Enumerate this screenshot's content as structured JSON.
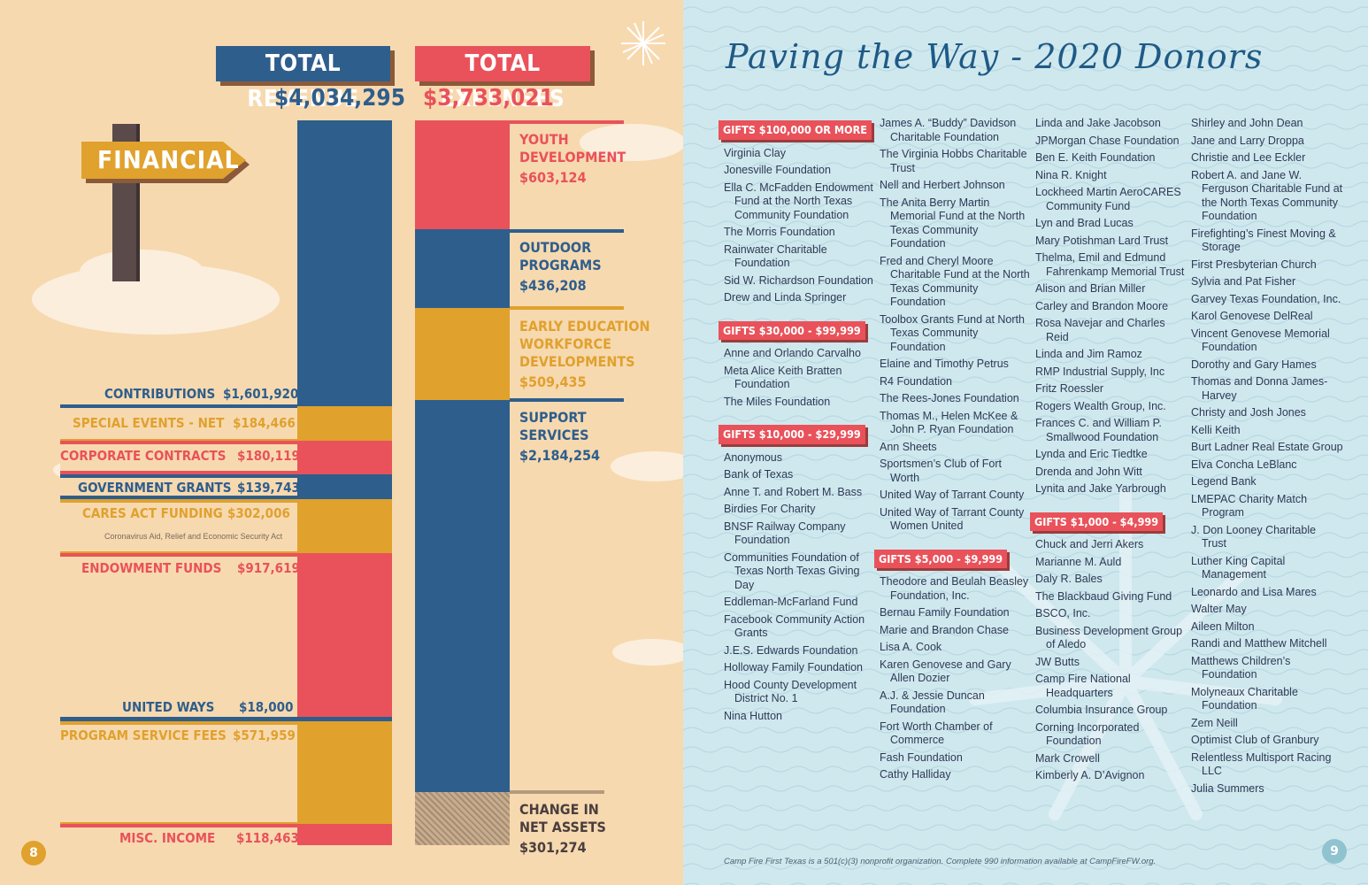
{
  "left_page": {
    "sign_text": "FINANCIAL",
    "page_number": "8",
    "revenue": {
      "title": "TOTAL REVENUE",
      "amount": "$4,034,295",
      "items": [
        {
          "label": "CONTRIBUTIONS",
          "value": "$1,601,920",
          "color": "#2e5e8c"
        },
        {
          "label": "SPECIAL EVENTS - NET",
          "value": "$184,466",
          "color": "#e0a12d"
        },
        {
          "label": "CORPORATE CONTRACTS",
          "value": "$180,119",
          "color": "#e9525a"
        },
        {
          "label": "GOVERNMENT GRANTS",
          "value": "$139,743",
          "color": "#2e5e8c"
        },
        {
          "label": "CARES ACT FUNDING",
          "value": "$302,006",
          "color": "#e0a12d",
          "note": "Coronavirus Aid, Relief and Economic Security Act"
        },
        {
          "label": "ENDOWMENT FUNDS",
          "value": "$917,619",
          "color": "#e9525a"
        },
        {
          "label": "UNITED WAYS",
          "value": "$18,000",
          "color": "#2e5e8c"
        },
        {
          "label": "PROGRAM SERVICE FEES",
          "value": "$571,959",
          "color": "#e0a12d"
        },
        {
          "label": "MISC. INCOME",
          "value": "$118,463",
          "color": "#e9525a"
        }
      ]
    },
    "expenses": {
      "title": "TOTAL EXPENSES",
      "amount": "$3,733,021",
      "items": [
        {
          "label_lines": [
            "YOUTH",
            "DEVELOPMENT"
          ],
          "value": "$603,124",
          "color": "#e9525a"
        },
        {
          "label_lines": [
            "OUTDOOR",
            "PROGRAMS"
          ],
          "value": "$436,208",
          "color": "#2e5e8c"
        },
        {
          "label_lines": [
            "EARLY EDUCATION",
            "WORKFORCE",
            "DEVELOPMENTS"
          ],
          "value": "$509,435",
          "color": "#e0a12d"
        },
        {
          "label_lines": [
            "SUPPORT",
            "SERVICES"
          ],
          "value": "$2,184,254",
          "color": "#2e5e8c"
        },
        {
          "label_lines": [
            "CHANGE IN",
            "NET ASSETS"
          ],
          "value": "$301,274",
          "color": "#b59a7e"
        }
      ]
    }
  },
  "right_page": {
    "title": "Paving the Way - 2020 Donors",
    "page_number": "9",
    "footnote": "Camp Fire First Texas is a 501(c)(3) nonprofit organization. Complete 990 information available at CampFireFW.org.",
    "columns": [
      [
        {
          "tier": "GIFTS $100,000 OR MORE"
        },
        "Virginia Clay",
        "Jonesville Foundation",
        "Ella C. McFadden Endowment Fund at the North Texas Community Foundation",
        "The Morris Foundation",
        "Rainwater Charitable Foundation",
        "Sid W. Richardson Foundation",
        "Drew and Linda Springer",
        {
          "tier": "GIFTS $30,000 - $99,999"
        },
        "Anne and Orlando Carvalho",
        "Meta Alice Keith Bratten Foundation",
        "The Miles Foundation",
        {
          "tier": "GIFTS $10,000 - $29,999"
        },
        "Anonymous",
        "Bank of Texas",
        "Anne T. and Robert M. Bass",
        "Birdies For Charity",
        "BNSF Railway Company Foundation",
        "Communities Foundation of Texas North Texas Giving Day",
        "Eddleman-McFarland Fund",
        "Facebook Community Action Grants",
        "J.E.S. Edwards Foundation",
        "Holloway Family Foundation",
        "Hood County Development District No. 1",
        "Nina Hutton"
      ],
      [
        "James A. “Buddy” Davidson Charitable Foundation",
        "The Virginia Hobbs Charitable Trust",
        "Nell and Herbert Johnson",
        "The Anita Berry Martin Memorial Fund at the North Texas Community Foundation",
        "Fred and Cheryl Moore Charitable Fund at the North Texas Community Foundation",
        "Toolbox Grants Fund at North Texas Community Foundation",
        "Elaine and Timothy Petrus",
        "R4 Foundation",
        "The Rees-Jones Foundation",
        "Thomas M., Helen McKee & John P. Ryan Foundation",
        "Ann Sheets",
        "Sportsmen’s Club of Fort Worth",
        "United Way of Tarrant County",
        "United Way of Tarrant County Women United",
        {
          "tier": "GIFTS $5,000 - $9,999"
        },
        "Theodore and Beulah Beasley Foundation, Inc.",
        "Bernau Family Foundation",
        "Marie and Brandon Chase",
        "Lisa A. Cook",
        "Karen Genovese and Gary Allen Dozier",
        "A.J. & Jessie Duncan Foundation",
        "Fort Worth Chamber of Commerce",
        "Fash Foundation",
        "Cathy Halliday"
      ],
      [
        "Linda and Jake Jacobson",
        "JPMorgan Chase Foundation",
        "Ben E. Keith Foundation",
        "Nina R. Knight",
        "Lockheed Martin AeroCARES Community Fund",
        "Lyn and Brad Lucas",
        "Mary Potishman Lard Trust",
        "Thelma, Emil and Edmund Fahrenkamp Memorial Trust",
        "Alison and Brian Miller",
        "Carley and Brandon Moore",
        "Rosa Navejar and Charles Reid",
        "Linda and Jim Ramoz",
        "RMP Industrial Supply, Inc",
        "Fritz Roessler",
        "Rogers Wealth Group, Inc.",
        "Frances C. and William P. Smallwood Foundation",
        "Lynda and Eric Tiedtke",
        "Drenda and John Witt",
        "Lynita and Jake Yarbrough",
        {
          "tier": "GIFTS $1,000 - $4,999"
        },
        "Chuck and Jerri Akers",
        "Marianne M. Auld",
        "Daly R. Bales",
        "The Blackbaud Giving Fund",
        "BSCO, Inc.",
        "Business Development Group of Aledo",
        "JW Butts",
        "Camp Fire National Headquarters",
        "Columbia Insurance Group",
        "Corning Incorporated Foundation",
        "Mark Crowell",
        "Kimberly A. D’Avignon"
      ],
      [
        "Shirley and John Dean",
        "Jane and Larry Droppa",
        "Christie and Lee Eckler",
        "Robert A. and Jane W. Ferguson Charitable Fund at the North Texas Community Foundation",
        "Firefighting’s Finest Moving & Storage",
        "First Presbyterian Church",
        "Sylvia and Pat Fisher",
        "Garvey Texas Foundation, Inc.",
        "Karol Genovese DelReal",
        "Vincent Genovese Memorial Foundation",
        "Dorothy and Gary Hames",
        "Thomas and Donna James-Harvey",
        "Christy and Josh Jones",
        "Kelli Keith",
        "Burt Ladner Real Estate Group",
        "Elva Concha LeBlanc",
        "Legend Bank",
        "LMEPAC Charity Match Program",
        "J. Don Looney Charitable Trust",
        "Luther King Capital Management",
        "Leonardo and Lisa Mares",
        "Walter May",
        "Aileen Milton",
        "Randi and Matthew Mitchell",
        "Matthews Children’s Foundation",
        "Molyneaux Charitable Foundation",
        "Zem Neill",
        "Optimist Club of Granbury",
        "Relentless Multisport Racing LLC",
        "Julia Summers"
      ]
    ]
  }
}
